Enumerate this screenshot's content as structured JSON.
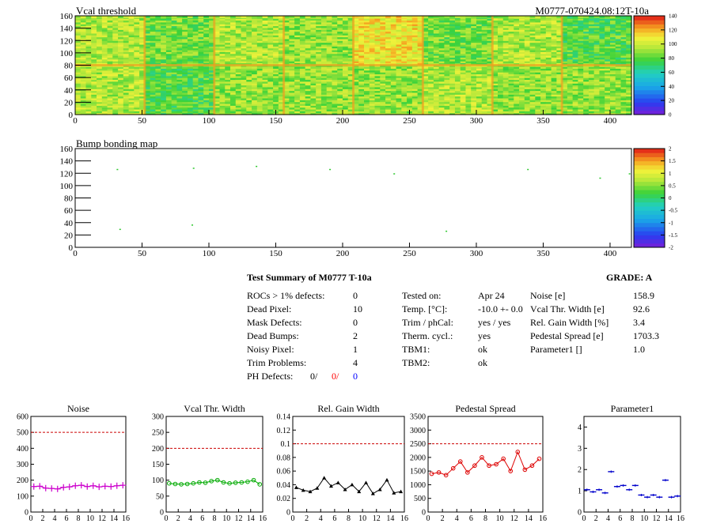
{
  "chart_data": [
    {
      "type": "heatmap",
      "title": "Vcal threshold",
      "module_label": "M0777-070424.08:12T-10a",
      "xlim": [
        0,
        416
      ],
      "ylim": [
        0,
        160
      ],
      "x_ticks": [
        "0",
        "50",
        "100",
        "150",
        "200",
        "250",
        "300",
        "350",
        "400"
      ],
      "y_ticks": [
        "0",
        "20",
        "40",
        "60",
        "80",
        "100",
        "120",
        "140",
        "160"
      ],
      "z_range": [
        0,
        140
      ],
      "z_ticks": [
        "0",
        "20",
        "40",
        "60",
        "80",
        "100",
        "120",
        "140"
      ],
      "roc_blocks_top_mean": [
        95,
        85,
        95,
        90,
        110,
        85,
        95,
        80
      ],
      "roc_blocks_bottom_mean": [
        95,
        80,
        90,
        90,
        90,
        95,
        90,
        90
      ]
    },
    {
      "type": "heatmap",
      "title": "Bump bonding map",
      "xlim": [
        0,
        416
      ],
      "ylim": [
        0,
        160
      ],
      "x_ticks": [
        "0",
        "50",
        "100",
        "150",
        "200",
        "250",
        "300",
        "350",
        "400"
      ],
      "y_ticks": [
        "0",
        "20",
        "40",
        "60",
        "80",
        "100",
        "120",
        "140",
        "160"
      ],
      "z_range": [
        -2,
        2
      ],
      "z_ticks": [
        "-2",
        "-1.5",
        "-1",
        "-0.5",
        "0",
        "0.5",
        "1",
        "1.5",
        "2"
      ],
      "points": [
        {
          "x": 31,
          "y": 127
        },
        {
          "x": 88,
          "y": 129
        },
        {
          "x": 135,
          "y": 132
        },
        {
          "x": 190,
          "y": 127
        },
        {
          "x": 238,
          "y": 120
        },
        {
          "x": 338,
          "y": 127
        },
        {
          "x": 392,
          "y": 113
        },
        {
          "x": 414,
          "y": 120
        },
        {
          "x": 33,
          "y": 30
        },
        {
          "x": 87,
          "y": 37
        },
        {
          "x": 277,
          "y": 27
        }
      ]
    },
    {
      "type": "line",
      "title": "Noise",
      "xlim": [
        0,
        16
      ],
      "ylim": [
        0,
        600
      ],
      "x_ticks": [
        "0",
        "2",
        "4",
        "6",
        "8",
        "10",
        "12",
        "14",
        "16"
      ],
      "y_ticks": [
        "0",
        "100",
        "200",
        "300",
        "400",
        "500",
        "600"
      ],
      "limit": 500,
      "color": "#cc00cc",
      "marker": "cross",
      "x": [
        0.5,
        1.5,
        2.5,
        3.5,
        4.5,
        5.5,
        6.5,
        7.5,
        8.5,
        9.5,
        10.5,
        11.5,
        12.5,
        13.5,
        14.5,
        15.5
      ],
      "values": [
        160,
        162,
        150,
        148,
        145,
        155,
        158,
        165,
        168,
        160,
        165,
        158,
        162,
        160,
        165,
        168
      ]
    },
    {
      "type": "line",
      "title": "Vcal Thr. Width",
      "xlim": [
        0,
        16
      ],
      "ylim": [
        0,
        300
      ],
      "x_ticks": [
        "0",
        "2",
        "4",
        "6",
        "8",
        "10",
        "12",
        "14",
        "16"
      ],
      "y_ticks": [
        "0",
        "50",
        "100",
        "150",
        "200",
        "250",
        "300"
      ],
      "limit": 200,
      "color": "#00aa00",
      "marker": "circle",
      "x": [
        0.5,
        1.5,
        2.5,
        3.5,
        4.5,
        5.5,
        6.5,
        7.5,
        8.5,
        9.5,
        10.5,
        11.5,
        12.5,
        13.5,
        14.5,
        15.5
      ],
      "values": [
        90,
        88,
        87,
        88,
        90,
        93,
        92,
        97,
        100,
        93,
        90,
        92,
        93,
        95,
        100,
        87
      ]
    },
    {
      "type": "line",
      "title": "Rel. Gain Width",
      "xlim": [
        0,
        16
      ],
      "ylim": [
        0,
        0.14
      ],
      "x_ticks": [
        "0",
        "2",
        "4",
        "6",
        "8",
        "10",
        "12",
        "14",
        "16"
      ],
      "y_ticks": [
        "0",
        "0.02",
        "0.04",
        "0.06",
        "0.08",
        "0.1",
        "0.12",
        "0.14"
      ],
      "limit": 0.1,
      "color": "#000000",
      "marker": "triangle",
      "x": [
        0.5,
        1.5,
        2.5,
        3.5,
        4.5,
        5.5,
        6.5,
        7.5,
        8.5,
        9.5,
        10.5,
        11.5,
        12.5,
        13.5,
        14.5,
        15.5
      ],
      "values": [
        0.036,
        0.032,
        0.03,
        0.035,
        0.05,
        0.038,
        0.043,
        0.033,
        0.04,
        0.03,
        0.043,
        0.027,
        0.033,
        0.047,
        0.028,
        0.03
      ]
    },
    {
      "type": "line",
      "title": "Pedestal Spread",
      "xlim": [
        0,
        16
      ],
      "ylim": [
        0,
        3500
      ],
      "x_ticks": [
        "0",
        "2",
        "4",
        "6",
        "8",
        "10",
        "12",
        "14",
        "16"
      ],
      "y_ticks": [
        "0",
        "500",
        "1000",
        "1500",
        "2000",
        "2500",
        "3000",
        "3500"
      ],
      "limit": 2500,
      "color": "#dd0000",
      "marker": "circle",
      "x": [
        0.5,
        1.5,
        2.5,
        3.5,
        4.5,
        5.5,
        6.5,
        7.5,
        8.5,
        9.5,
        10.5,
        11.5,
        12.5,
        13.5,
        14.5,
        15.5
      ],
      "values": [
        1400,
        1450,
        1350,
        1600,
        1850,
        1450,
        1700,
        2000,
        1700,
        1750,
        1950,
        1500,
        2200,
        1550,
        1700,
        1950
      ]
    },
    {
      "type": "scatter",
      "title": "Parameter1",
      "xlim": [
        0,
        16
      ],
      "ylim": [
        0,
        4.5
      ],
      "x_ticks": [
        "0",
        "2",
        "4",
        "6",
        "8",
        "10",
        "12",
        "14",
        "16"
      ],
      "y_ticks": [
        "0",
        "1",
        "2",
        "3",
        "4"
      ],
      "color": "#0000cc",
      "marker": "dash",
      "x": [
        0.5,
        1.5,
        2.5,
        3.5,
        4.5,
        5.5,
        6.5,
        7.5,
        8.5,
        9.5,
        10.5,
        11.5,
        12.5,
        13.5,
        14.5,
        15.5
      ],
      "values": [
        1.05,
        0.95,
        1.05,
        0.9,
        1.9,
        1.2,
        1.25,
        1.05,
        1.25,
        0.8,
        0.7,
        0.8,
        0.7,
        1.5,
        0.7,
        0.75
      ]
    }
  ],
  "summary": {
    "title": "Test Summary of M0777     T-10a",
    "grade": "GRADE:  A",
    "col1": [
      {
        "label": "ROCs > 1% defects:",
        "value": "0"
      },
      {
        "label": "Dead Pixel:",
        "value": "10"
      },
      {
        "label": "Mask Defects:",
        "value": "0"
      },
      {
        "label": "Dead Bumps:",
        "value": "2"
      },
      {
        "label": "Noisy Pixel:",
        "value": "1"
      },
      {
        "label": "Trim Problems:",
        "value": "4"
      }
    ],
    "ph_defects": {
      "label": "PH Defects:",
      "v1": "0/",
      "v2": "0/",
      "v3": "0",
      "c2": "#ff0000",
      "c3": "#0000ff"
    },
    "col2": [
      {
        "label": "Tested on:",
        "value": "Apr 24"
      },
      {
        "label": "Temp. [°C]:",
        "value": "-10.0 +- 0.0"
      },
      {
        "label": "Trim / phCal:",
        "value": "yes / yes"
      },
      {
        "label": "Therm. cycl.:",
        "value": "yes"
      },
      {
        "label": "TBM1:",
        "value": "ok"
      },
      {
        "label": "TBM2:",
        "value": "ok"
      }
    ],
    "col3": [
      {
        "label": "Noise [e]",
        "value": "158.9"
      },
      {
        "label": "Vcal Thr. Width [e]",
        "value": "92.6"
      },
      {
        "label": "Rel. Gain Width [%]",
        "value": "3.4"
      },
      {
        "label": "Pedestal Spread [e]",
        "value": "1703.3"
      },
      {
        "label": "Parameter1 []",
        "value": "1.0"
      }
    ]
  }
}
